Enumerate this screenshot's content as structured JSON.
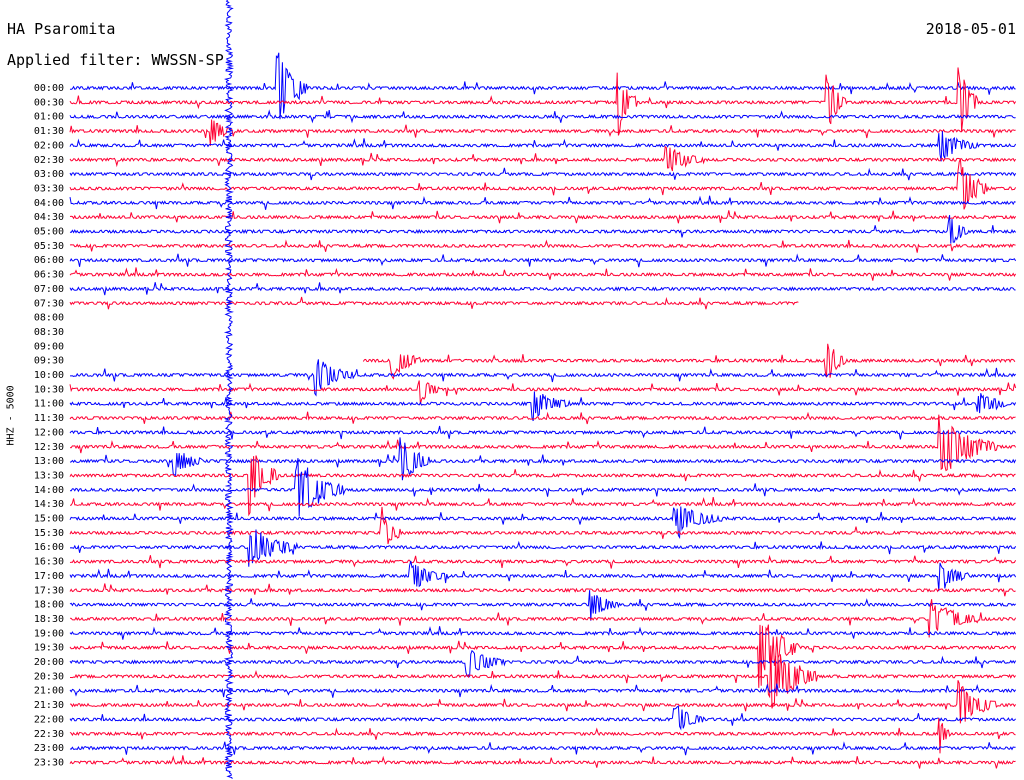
{
  "header": {
    "station": "HA Psaromita",
    "date": "2018-05-01",
    "filter_label": "Applied filter: WWSSN-SP"
  },
  "chart_data": {
    "type": "line",
    "title": "HA Psaromita",
    "subtitle": "Applied filter: WWSSN-SP",
    "date": "2018-05-01",
    "ylabel": "HHZ - 5000",
    "row_labels": [
      "00:00",
      "00:30",
      "01:00",
      "01:30",
      "02:00",
      "02:30",
      "03:00",
      "03:30",
      "04:00",
      "04:30",
      "05:00",
      "05:30",
      "06:00",
      "06:30",
      "07:00",
      "07:30",
      "08:00",
      "08:30",
      "09:00",
      "09:30",
      "10:00",
      "10:30",
      "11:00",
      "11:30",
      "12:00",
      "12:30",
      "13:00",
      "13:30",
      "14:00",
      "14:30",
      "15:00",
      "15:30",
      "16:00",
      "16:30",
      "17:00",
      "17:30",
      "18:00",
      "18:30",
      "19:00",
      "19:30",
      "20:00",
      "20:30",
      "21:00",
      "21:30",
      "22:00",
      "22:30",
      "23:00",
      "23:30"
    ],
    "series_colors": [
      "#0000ff",
      "#ff0033"
    ],
    "row_coverage": [
      [
        0,
        1
      ],
      [
        0,
        1
      ],
      [
        0,
        1
      ],
      [
        0,
        1
      ],
      [
        0,
        1
      ],
      [
        0,
        1
      ],
      [
        0,
        1
      ],
      [
        0,
        1
      ],
      [
        0,
        1
      ],
      [
        0,
        1
      ],
      [
        0,
        1
      ],
      [
        0,
        1
      ],
      [
        0,
        1
      ],
      [
        0,
        1
      ],
      [
        0,
        1
      ],
      [
        0,
        0.77
      ],
      null,
      null,
      null,
      [
        0.31,
        1
      ],
      [
        0,
        1
      ],
      [
        0,
        1
      ],
      [
        0,
        1
      ],
      [
        0,
        1
      ],
      [
        0,
        1
      ],
      [
        0,
        1
      ],
      [
        0,
        1
      ],
      [
        0,
        1
      ],
      [
        0,
        1
      ],
      [
        0,
        1
      ],
      [
        0,
        1
      ],
      [
        0,
        1
      ],
      [
        0,
        1
      ],
      [
        0,
        1
      ],
      [
        0,
        1
      ],
      [
        0,
        1
      ],
      [
        0,
        1
      ],
      [
        0,
        1
      ],
      [
        0,
        1
      ],
      [
        0,
        1
      ],
      [
        0,
        1
      ],
      [
        0,
        1
      ],
      [
        0,
        1
      ],
      [
        0,
        1
      ],
      [
        0,
        1
      ],
      [
        0,
        1
      ],
      [
        0,
        1
      ],
      [
        0,
        1
      ]
    ],
    "events": [
      {
        "row": 0,
        "t": 0.22,
        "amp": 1.0,
        "dur": 0.03
      },
      {
        "row": 1,
        "t": 0.58,
        "amp": 0.9,
        "dur": 0.02
      },
      {
        "row": 1,
        "t": 0.8,
        "amp": 0.9,
        "dur": 0.02
      },
      {
        "row": 1,
        "t": 0.94,
        "amp": 1.0,
        "dur": 0.02
      },
      {
        "row": 3,
        "t": 0.15,
        "amp": 0.4,
        "dur": 0.02
      },
      {
        "row": 4,
        "t": 0.92,
        "amp": 0.4,
        "dur": 0.04
      },
      {
        "row": 5,
        "t": 0.63,
        "amp": 0.4,
        "dur": 0.04
      },
      {
        "row": 7,
        "t": 0.94,
        "amp": 0.9,
        "dur": 0.03
      },
      {
        "row": 10,
        "t": 0.93,
        "amp": 0.5,
        "dur": 0.02
      },
      {
        "row": 19,
        "t": 0.34,
        "amp": 0.5,
        "dur": 0.03
      },
      {
        "row": 19,
        "t": 0.8,
        "amp": 0.6,
        "dur": 0.02
      },
      {
        "row": 20,
        "t": 0.26,
        "amp": 0.5,
        "dur": 0.04
      },
      {
        "row": 21,
        "t": 0.37,
        "amp": 0.5,
        "dur": 0.02
      },
      {
        "row": 22,
        "t": 0.49,
        "amp": 0.4,
        "dur": 0.04
      },
      {
        "row": 22,
        "t": 0.96,
        "amp": 0.4,
        "dur": 0.03
      },
      {
        "row": 25,
        "t": 0.92,
        "amp": 0.8,
        "dur": 0.06
      },
      {
        "row": 26,
        "t": 0.35,
        "amp": 0.7,
        "dur": 0.03
      },
      {
        "row": 26,
        "t": 0.11,
        "amp": 0.4,
        "dur": 0.03
      },
      {
        "row": 27,
        "t": 0.19,
        "amp": 1.0,
        "dur": 0.03
      },
      {
        "row": 28,
        "t": 0.24,
        "amp": 0.9,
        "dur": 0.05
      },
      {
        "row": 30,
        "t": 0.64,
        "amp": 0.4,
        "dur": 0.05
      },
      {
        "row": 31,
        "t": 0.33,
        "amp": 0.6,
        "dur": 0.02
      },
      {
        "row": 32,
        "t": 0.19,
        "amp": 0.6,
        "dur": 0.05
      },
      {
        "row": 34,
        "t": 0.36,
        "amp": 0.4,
        "dur": 0.04
      },
      {
        "row": 34,
        "t": 0.92,
        "amp": 0.4,
        "dur": 0.03
      },
      {
        "row": 36,
        "t": 0.55,
        "amp": 0.4,
        "dur": 0.03
      },
      {
        "row": 37,
        "t": 0.91,
        "amp": 0.5,
        "dur": 0.05
      },
      {
        "row": 39,
        "t": 0.73,
        "amp": 1.0,
        "dur": 0.04
      },
      {
        "row": 40,
        "t": 0.42,
        "amp": 0.4,
        "dur": 0.04
      },
      {
        "row": 41,
        "t": 0.74,
        "amp": 1.0,
        "dur": 0.05
      },
      {
        "row": 43,
        "t": 0.94,
        "amp": 0.6,
        "dur": 0.04
      },
      {
        "row": 44,
        "t": 0.64,
        "amp": 0.4,
        "dur": 0.03
      },
      {
        "row": 45,
        "t": 0.92,
        "amp": 0.5,
        "dur": 0.01
      }
    ]
  }
}
